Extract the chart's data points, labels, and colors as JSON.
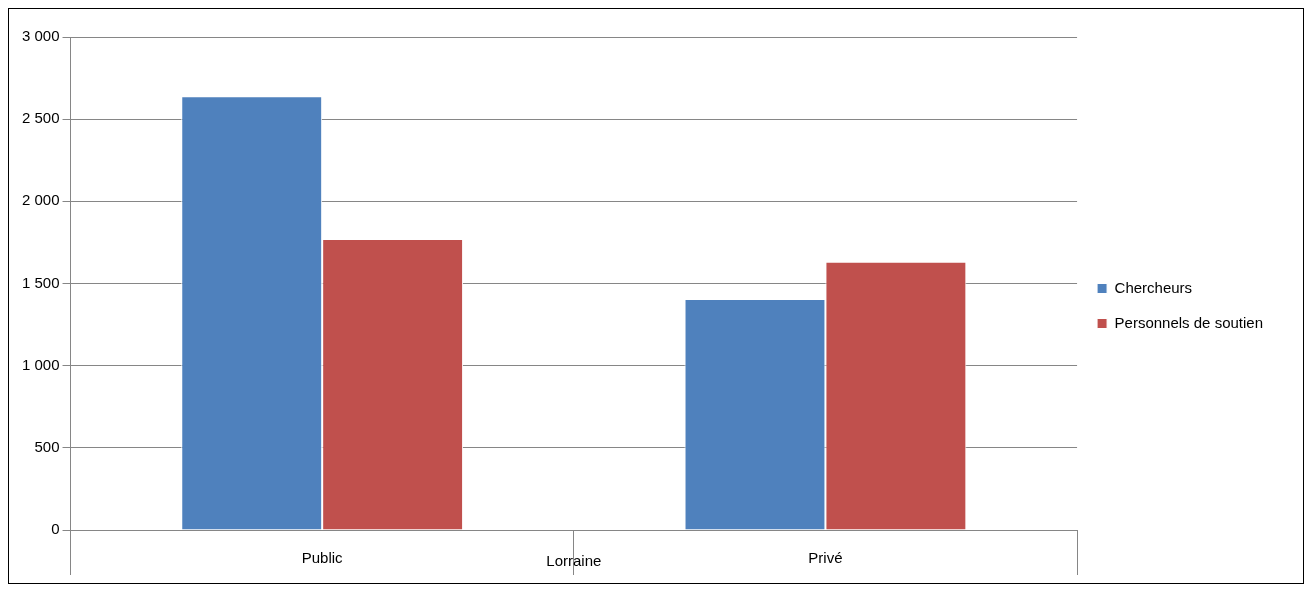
{
  "chart_data": {
    "type": "bar",
    "xlabel": "Lorraine",
    "categories": [
      "Public",
      "Privé"
    ],
    "series": [
      {
        "name": "Chercheurs",
        "color": "#4f81bd",
        "values": [
          2640,
          1405
        ]
      },
      {
        "name": "Personnels de soutien",
        "color": "#c0504d",
        "values": [
          1771,
          1632
        ]
      }
    ],
    "ylim": [
      0,
      3000
    ],
    "yticks": [
      0,
      500,
      {
        "value": 1000,
        "label": "1 000"
      },
      {
        "value": 1500,
        "label": "1 500"
      },
      {
        "value": 2000,
        "label": "2 000"
      },
      {
        "value": 2500,
        "label": "2 500"
      },
      {
        "value": 3000,
        "label": "3 000"
      }
    ],
    "grid": "y",
    "legend": "right"
  }
}
